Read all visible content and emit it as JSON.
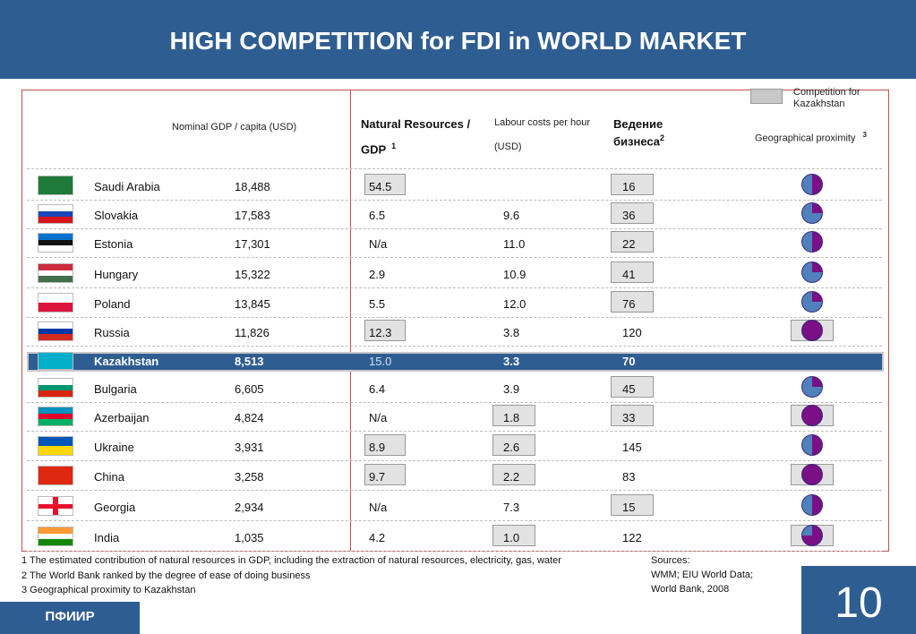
{
  "title": "HIGH COMPETITION for FDI in WORLD MARKET",
  "legend": {
    "label": "Competition for Kazakhstan",
    "box_color": "#c8c8c8"
  },
  "columns": {
    "gdp": "Nominal GDP / capita (USD)",
    "natural_line1": "Natural Resources /",
    "natural_line2": "GDP",
    "natural_sup": "1",
    "labour_line1": "Labour costs per hour",
    "labour_line2": "(USD)",
    "business_line1": "Ведение",
    "business_line2": "бизнеса",
    "business_sup": "2",
    "geo": "Geographical proximity",
    "geo_sup": "3"
  },
  "colors": {
    "brand": "#2e5d92",
    "pie_blue": "#4f81bd",
    "pie_purple": "#7a0f86",
    "frame": "#c0504d"
  },
  "rows": [
    {
      "country": "Saudi Arabia",
      "gdp": "18,488",
      "natural": "54.5",
      "labour": "",
      "business": "16",
      "flag": "saudi",
      "nat_box": true,
      "lab_box": false,
      "bus_box": true,
      "pie": 0.5,
      "pie_box": false
    },
    {
      "country": "Slovakia",
      "gdp": "17,583",
      "natural": "6.5",
      "labour": "9.6",
      "business": "36",
      "flag": "slovakia",
      "nat_box": false,
      "lab_box": false,
      "bus_box": true,
      "pie": 0.25,
      "pie_box": false
    },
    {
      "country": "Estonia",
      "gdp": "17,301",
      "natural": "N/a",
      "labour": "11.0",
      "business": "22",
      "flag": "estonia",
      "nat_box": false,
      "lab_box": false,
      "bus_box": true,
      "pie": 0.5,
      "pie_box": false
    },
    {
      "country": "Hungary",
      "gdp": "15,322",
      "natural": "2.9",
      "labour": "10.9",
      "business": "41",
      "flag": "hungary",
      "nat_box": false,
      "lab_box": false,
      "bus_box": true,
      "pie": 0.25,
      "pie_box": false
    },
    {
      "country": "Poland",
      "gdp": "13,845",
      "natural": "5.5",
      "labour": "12.0",
      "business": "76",
      "flag": "poland",
      "nat_box": false,
      "lab_box": false,
      "bus_box": true,
      "pie": 0.25,
      "pie_box": false
    },
    {
      "country": "Russia",
      "gdp": "11,826",
      "natural": "12.3",
      "labour": "3.8",
      "business": "120",
      "flag": "russia",
      "nat_box": true,
      "lab_box": false,
      "bus_box": false,
      "pie": 1,
      "pie_box": true
    },
    {
      "country": "Kazakhstan",
      "gdp": "8,513",
      "natural": "15.0",
      "labour": "3.3",
      "business": "70",
      "flag": "kazakhstan",
      "nat_box": false,
      "lab_box": false,
      "bus_box": false,
      "pie": null,
      "pie_box": false,
      "highlight": true
    },
    {
      "country": "Bulgaria",
      "gdp": "6,605",
      "natural": "6.4",
      "labour": "3.9",
      "business": "45",
      "flag": "bulgaria",
      "nat_box": false,
      "lab_box": false,
      "bus_box": true,
      "pie": 0.25,
      "pie_box": false
    },
    {
      "country": "Azerbaijan",
      "gdp": "4,824",
      "natural": "N/a",
      "labour": "1.8",
      "business": "33",
      "flag": "azerbaijan",
      "nat_box": false,
      "lab_box": true,
      "bus_box": true,
      "pie": 1,
      "pie_box": true
    },
    {
      "country": "Ukraine",
      "gdp": "3,931",
      "natural": "8.9",
      "labour": "2.6",
      "business": "145",
      "flag": "ukraine",
      "nat_box": true,
      "lab_box": true,
      "bus_box": false,
      "pie": 0.5,
      "pie_box": false
    },
    {
      "country": "China",
      "gdp": "3,258",
      "natural": "9.7",
      "labour": "2.2",
      "business": "83",
      "flag": "china",
      "nat_box": true,
      "lab_box": true,
      "bus_box": false,
      "pie": 1,
      "pie_box": true
    },
    {
      "country": "Georgia",
      "gdp": "2,934",
      "natural": "N/a",
      "labour": "7.3",
      "business": "15",
      "flag": "georgia",
      "nat_box": false,
      "lab_box": false,
      "bus_box": true,
      "pie": 0.5,
      "pie_box": false
    },
    {
      "country": "India",
      "gdp": "1,035",
      "natural": "4.2",
      "labour": "1.0",
      "business": "122",
      "flag": "india",
      "nat_box": false,
      "lab_box": true,
      "bus_box": false,
      "pie": 0.75,
      "pie_box": true
    }
  ],
  "footnotes": [
    "1 The estimated contribution of natural resources in GDP, including the extraction of natural resources, electricity, gas, water",
    "2 The World Bank ranked by the degree of ease of doing business",
    "3 Geographical proximity to Kazakhstan"
  ],
  "sources": [
    "Sources:",
    "WMM; EIU World Data;",
    "World Bank, 2008"
  ],
  "footer_label": "ПФИИР",
  "page_number": "10"
}
